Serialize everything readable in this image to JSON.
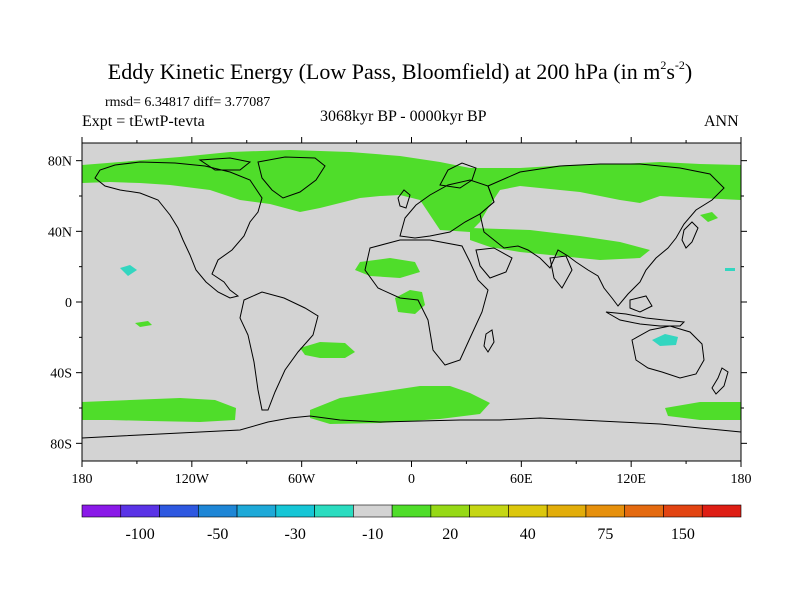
{
  "header": {
    "title_main": "Eddy Kinetic Energy (Low Pass, Bloomfield) at 200 hPa (in m",
    "title_sup1": "2",
    "title_mid": "s",
    "title_sup2": "-2",
    "title_end": ")",
    "stats": "rmsd= 6.34817 diff= 3.77087",
    "experiment": "Expt = tEwtP-tevta",
    "period": "3068kyr BP - 0000kyr BP",
    "season": "ANN"
  },
  "map": {
    "background_color": "#d3d3d3",
    "positive_color": "#4fdd2a",
    "negative_color": "#33d6c0",
    "lon_labels": [
      "180",
      "120W",
      "60W",
      "0",
      "60E",
      "120E",
      "180"
    ],
    "lon_values": [
      -180,
      -120,
      -60,
      0,
      60,
      120,
      180
    ],
    "lat_labels": [
      "80N",
      "40N",
      "0",
      "40S",
      "80S"
    ],
    "lat_values": [
      80,
      40,
      0,
      -40,
      -80
    ]
  },
  "colorbar": {
    "colors": [
      "#8a19e8",
      "#5a33e6",
      "#2e58e0",
      "#1e86d6",
      "#1ea9d8",
      "#16c6d6",
      "#2bdcc0",
      "#d3d3d3",
      "#4fdd2a",
      "#96d916",
      "#c5d614",
      "#dcc70c",
      "#e2ad0a",
      "#e6900c",
      "#e46a10",
      "#e24412",
      "#de1e14"
    ],
    "labels": [
      "-100",
      "-50",
      "-30",
      "-10",
      "20",
      "40",
      "75",
      "150"
    ]
  }
}
